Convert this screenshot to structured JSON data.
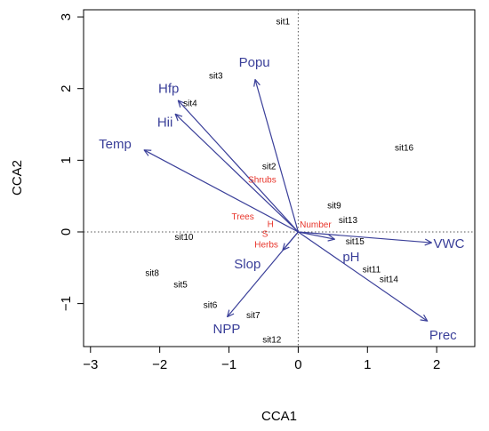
{
  "chart_data": {
    "type": "scatter",
    "title": "",
    "xlabel": "CCA1",
    "ylabel": "CCA2",
    "xlim": [
      -3.1,
      2.55
    ],
    "ylim": [
      -1.6,
      3.1
    ],
    "x_ticks": [
      -3,
      -2,
      -1,
      0,
      1,
      2
    ],
    "y_ticks": [
      -1,
      0,
      1,
      2,
      3
    ],
    "x_tick_labels": [
      "−3",
      "−2",
      "−1",
      "0",
      "1",
      "2"
    ],
    "y_tick_labels": [
      "−1",
      "0",
      "1",
      "2",
      "3"
    ],
    "reference_lines": {
      "x": 0,
      "y": 0,
      "style": "dotted"
    },
    "grid": false,
    "colors": {
      "env_arrows": "#3a3f99",
      "species": "#e8352b",
      "sites": "#000000"
    },
    "env_vectors": [
      {
        "name": "Popu",
        "x": -0.62,
        "y": 2.12
      },
      {
        "name": "Hfp",
        "x": -1.73,
        "y": 1.83
      },
      {
        "name": "Hii",
        "x": -1.77,
        "y": 1.64
      },
      {
        "name": "Temp",
        "x": -2.22,
        "y": 1.14
      },
      {
        "name": "Slop",
        "x": -0.22,
        "y": -0.25
      },
      {
        "name": "NPP",
        "x": -1.02,
        "y": -1.18
      },
      {
        "name": "pH",
        "x": 0.52,
        "y": -0.1
      },
      {
        "name": "VWC",
        "x": 1.92,
        "y": -0.15
      },
      {
        "name": "Prec",
        "x": 1.86,
        "y": -1.24
      }
    ],
    "species": [
      {
        "name": "Shrubs",
        "x": -0.52,
        "y": 0.74
      },
      {
        "name": "Trees",
        "x": -0.8,
        "y": 0.22
      },
      {
        "name": "H",
        "x": -0.4,
        "y": 0.12
      },
      {
        "name": "S",
        "x": -0.48,
        "y": -0.02
      },
      {
        "name": "Number",
        "x": 0.25,
        "y": 0.11
      },
      {
        "name": "Herbs",
        "x": -0.46,
        "y": -0.17
      }
    ],
    "sites": [
      {
        "name": "sit1",
        "x": -0.22,
        "y": 2.94
      },
      {
        "name": "sit2",
        "x": -0.42,
        "y": 0.92
      },
      {
        "name": "sit3",
        "x": -1.19,
        "y": 2.18
      },
      {
        "name": "sit4",
        "x": -1.56,
        "y": 1.8
      },
      {
        "name": "sit5",
        "x": -1.7,
        "y": -0.73
      },
      {
        "name": "sit6",
        "x": -1.27,
        "y": -1.02
      },
      {
        "name": "sit7",
        "x": -0.65,
        "y": -1.16
      },
      {
        "name": "sit8",
        "x": -2.11,
        "y": -0.57
      },
      {
        "name": "sit9",
        "x": 0.52,
        "y": 0.37
      },
      {
        "name": "sit10",
        "x": -1.65,
        "y": -0.07
      },
      {
        "name": "sit11",
        "x": 1.06,
        "y": -0.52
      },
      {
        "name": "sit12",
        "x": -0.38,
        "y": -1.5
      },
      {
        "name": "sit13",
        "x": 0.72,
        "y": 0.17
      },
      {
        "name": "sit14",
        "x": 1.31,
        "y": -0.66
      },
      {
        "name": "sit15",
        "x": 0.82,
        "y": -0.13
      },
      {
        "name": "sit16",
        "x": 1.53,
        "y": 1.18
      }
    ]
  }
}
